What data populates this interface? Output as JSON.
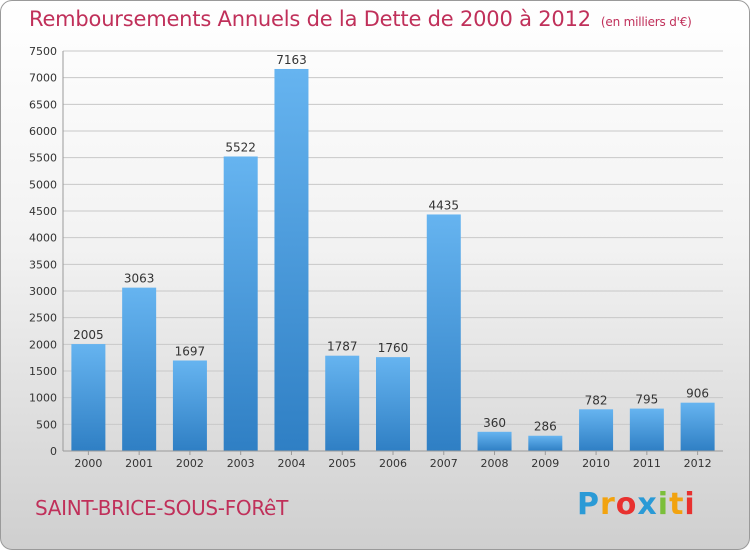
{
  "title": "Remboursements Annuels de la Dette de 2000 à 2012",
  "unit_note": "(en milliers d'€)",
  "city": "SAINT-BRICE-SOUS-FORêT",
  "logo": {
    "letters": [
      "P",
      "r",
      "o",
      "x",
      "i",
      "t",
      "i"
    ],
    "colors": [
      "#2a9ad6",
      "#f2a30f",
      "#e8312f",
      "#2a9ad6",
      "#7bbf3a",
      "#f2a30f",
      "#e8312f"
    ]
  },
  "colors": {
    "bar": "#3d8fd6",
    "bar_light": "#63b0ee",
    "grid": "#c8c8c8",
    "title": "#c0305a"
  },
  "chart_data": {
    "type": "bar",
    "title": "Remboursements Annuels de la Dette de 2000 à 2012",
    "xlabel": "",
    "ylabel": "",
    "categories": [
      "2000",
      "2001",
      "2002",
      "2003",
      "2004",
      "2005",
      "2006",
      "2007",
      "2008",
      "2009",
      "2010",
      "2011",
      "2012"
    ],
    "values": [
      2005,
      3063,
      1697,
      5522,
      7163,
      1787,
      1760,
      4435,
      360,
      286,
      782,
      795,
      906
    ],
    "data_labels": [
      "2005",
      "3063",
      "1697",
      "5522",
      "7163",
      "1787",
      "1760",
      "4435",
      "360",
      "286",
      "782",
      "795",
      "906"
    ],
    "ylim": [
      0,
      7500
    ],
    "yticks": [
      0,
      500,
      1000,
      1500,
      2000,
      2500,
      3000,
      3500,
      4000,
      4500,
      5000,
      5500,
      6000,
      6500,
      7000,
      7500
    ],
    "ytick_labels": [
      "0",
      "500",
      "1000",
      "1500",
      "2000",
      "2500",
      "3000",
      "3500",
      "4000",
      "4500",
      "5000",
      "5500",
      "6000",
      "6500",
      "7000",
      "7500"
    ],
    "grid": true,
    "legend": "none"
  }
}
